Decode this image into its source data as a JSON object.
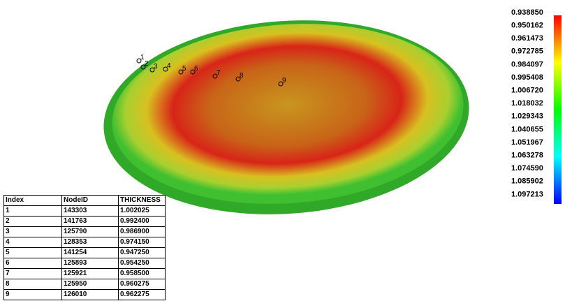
{
  "legend": {
    "labels": [
      "0.938850",
      "0.950162",
      "0.961473",
      "0.972785",
      "0.984097",
      "0.995408",
      "1.006720",
      "1.018032",
      "1.029343",
      "1.040655",
      "1.051967",
      "1.063278",
      "1.074590",
      "1.085902",
      "1.097213"
    ]
  },
  "nodes": [
    "1",
    "2",
    "3",
    "4",
    "5",
    "6",
    "7",
    "8",
    "9"
  ],
  "table": {
    "header": [
      "Index",
      "NodeID",
      "THICKNESS"
    ],
    "rows": [
      [
        "1",
        "143303",
        "1.002025"
      ],
      [
        "2",
        "141763",
        "0.992400"
      ],
      [
        "3",
        "125790",
        "0.986900"
      ],
      [
        "4",
        "128353",
        "0.974150"
      ],
      [
        "5",
        "141254",
        "0.947250"
      ],
      [
        "6",
        "125893",
        "0.954250"
      ],
      [
        "7",
        "125921",
        "0.958500"
      ],
      [
        "8",
        "125950",
        "0.960275"
      ],
      [
        "9",
        "126010",
        "0.962275"
      ]
    ]
  }
}
